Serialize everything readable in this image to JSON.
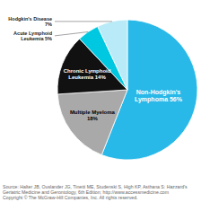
{
  "chart_data": {
    "type": "pie",
    "categories": [
      "Non-Hodgkin's\nLymphoma 56%",
      "Multiple Myeloma\n18%",
      "Chronic Lymphoid\nLeukemia 14%",
      "Acute Lymphoid\nLeukemia 5%",
      "Hodgkin's Disease\n7%"
    ],
    "values": [
      56,
      18,
      14,
      5,
      7
    ],
    "colors": [
      "#29b9e8",
      "#a9a9a9",
      "#111111",
      "#00c8e0",
      "#b8eaf8"
    ],
    "annotations": [
      "Source: Halter JB, Ouslander JG, Tinetti ME, Studenski S, High KP, Asthana S: Hazzard's\nGeriatric Medicine and Gerontology, 6th Edition; http://www.accessmedicine.com\nCopyright © The McGraw-Hill Companies, Inc. All rights reserved."
    ]
  }
}
